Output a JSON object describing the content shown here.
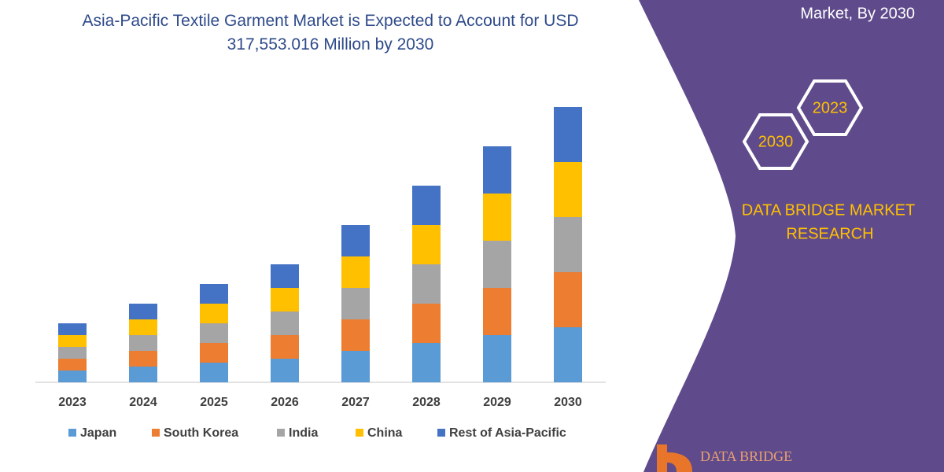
{
  "chart_data": {
    "type": "stacked-bar",
    "title": "Asia-Pacific Textile Garment Market is Expected to Account for USD 317,553.016 Million by 2030",
    "categories": [
      "2023",
      "2024",
      "2025",
      "2026",
      "2027",
      "2028",
      "2029",
      "2030"
    ],
    "series": [
      {
        "name": "Japan",
        "color": "#5b9bd5",
        "values": [
          15,
          20,
          25,
          30,
          40,
          50,
          60,
          70
        ]
      },
      {
        "name": "South Korea",
        "color": "#ed7d31",
        "values": [
          15,
          20,
          25,
          30,
          40,
          50,
          60,
          70
        ]
      },
      {
        "name": "India",
        "color": "#a5a5a5",
        "values": [
          15,
          20,
          25,
          30,
          40,
          50,
          60,
          70
        ]
      },
      {
        "name": "China",
        "color": "#ffc000",
        "values": [
          15,
          20,
          25,
          30,
          40,
          50,
          60,
          70
        ]
      },
      {
        "name": "Rest of Asia-Pacific",
        "color": "#4472c4",
        "values": [
          15,
          20,
          25,
          30,
          40,
          50,
          60,
          70
        ]
      }
    ],
    "legend": "bottom"
  },
  "panel": {
    "caption": "Market, By 2030",
    "badges": [
      "2023",
      "2030"
    ],
    "brand": [
      "DATA BRIDGE MARKET",
      "RESEARCH"
    ],
    "logo": "DATA BRIDGE"
  }
}
